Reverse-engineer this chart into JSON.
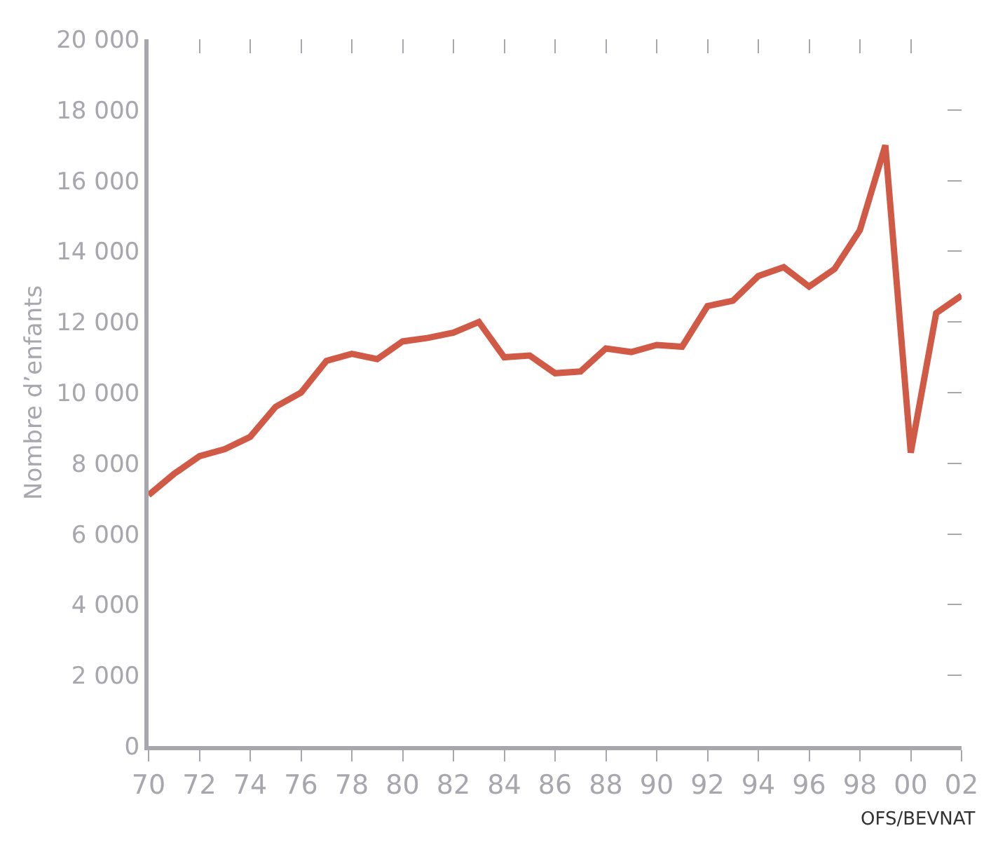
{
  "chart_data": {
    "type": "line",
    "ylabel": "Nombre d’enfants",
    "x": [
      1970,
      1971,
      1972,
      1973,
      1974,
      1975,
      1976,
      1977,
      1978,
      1979,
      1980,
      1981,
      1982,
      1983,
      1984,
      1985,
      1986,
      1987,
      1988,
      1989,
      1990,
      1991,
      1992,
      1993,
      1994,
      1995,
      1996,
      1997,
      1998,
      1999,
      2000,
      2001,
      2002
    ],
    "series": [
      {
        "color": "#d05a45",
        "values": [
          7100,
          7700,
          8200,
          8400,
          8750,
          9600,
          10000,
          10900,
          11100,
          10950,
          11450,
          11550,
          11700,
          12000,
          11000,
          11050,
          10550,
          10600,
          11250,
          11150,
          11350,
          11300,
          12450,
          12600,
          13300,
          13550,
          13000,
          13500,
          14600,
          17000,
          8300,
          12250,
          12750
        ]
      }
    ],
    "xlim": [
      1970,
      2002
    ],
    "xticks": [
      {
        "value": 1970,
        "label": "70"
      },
      {
        "value": 1972,
        "label": "72"
      },
      {
        "value": 1974,
        "label": "74"
      },
      {
        "value": 1976,
        "label": "76"
      },
      {
        "value": 1978,
        "label": "78"
      },
      {
        "value": 1980,
        "label": "80"
      },
      {
        "value": 1982,
        "label": "82"
      },
      {
        "value": 1984,
        "label": "84"
      },
      {
        "value": 1986,
        "label": "86"
      },
      {
        "value": 1988,
        "label": "88"
      },
      {
        "value": 1990,
        "label": "90"
      },
      {
        "value": 1992,
        "label": "92"
      },
      {
        "value": 1994,
        "label": "94"
      },
      {
        "value": 1996,
        "label": "96"
      },
      {
        "value": 1998,
        "label": "98"
      },
      {
        "value": 2000,
        "label": "00"
      },
      {
        "value": 2002,
        "label": "02"
      }
    ],
    "ylim": [
      0,
      20000
    ],
    "yticks": [
      0,
      {
        "value": 2000,
        "label": "2 000"
      },
      {
        "value": 4000,
        "label": "4 000"
      },
      {
        "value": 6000,
        "label": "6 000"
      },
      {
        "value": 8000,
        "label": "8 000"
      },
      {
        "value": 10000,
        "label": "10 000"
      },
      {
        "value": 12000,
        "label": "12 000"
      },
      {
        "value": 14000,
        "label": "14 000"
      },
      {
        "value": 16000,
        "label": "16 000"
      },
      {
        "value": 18000,
        "label": "18 000"
      },
      {
        "value": 20000,
        "label": "20 000"
      }
    ],
    "grid": false,
    "marker": "none",
    "line_style": "solid",
    "annotations": [
      "OFS/BEVNAT"
    ]
  }
}
